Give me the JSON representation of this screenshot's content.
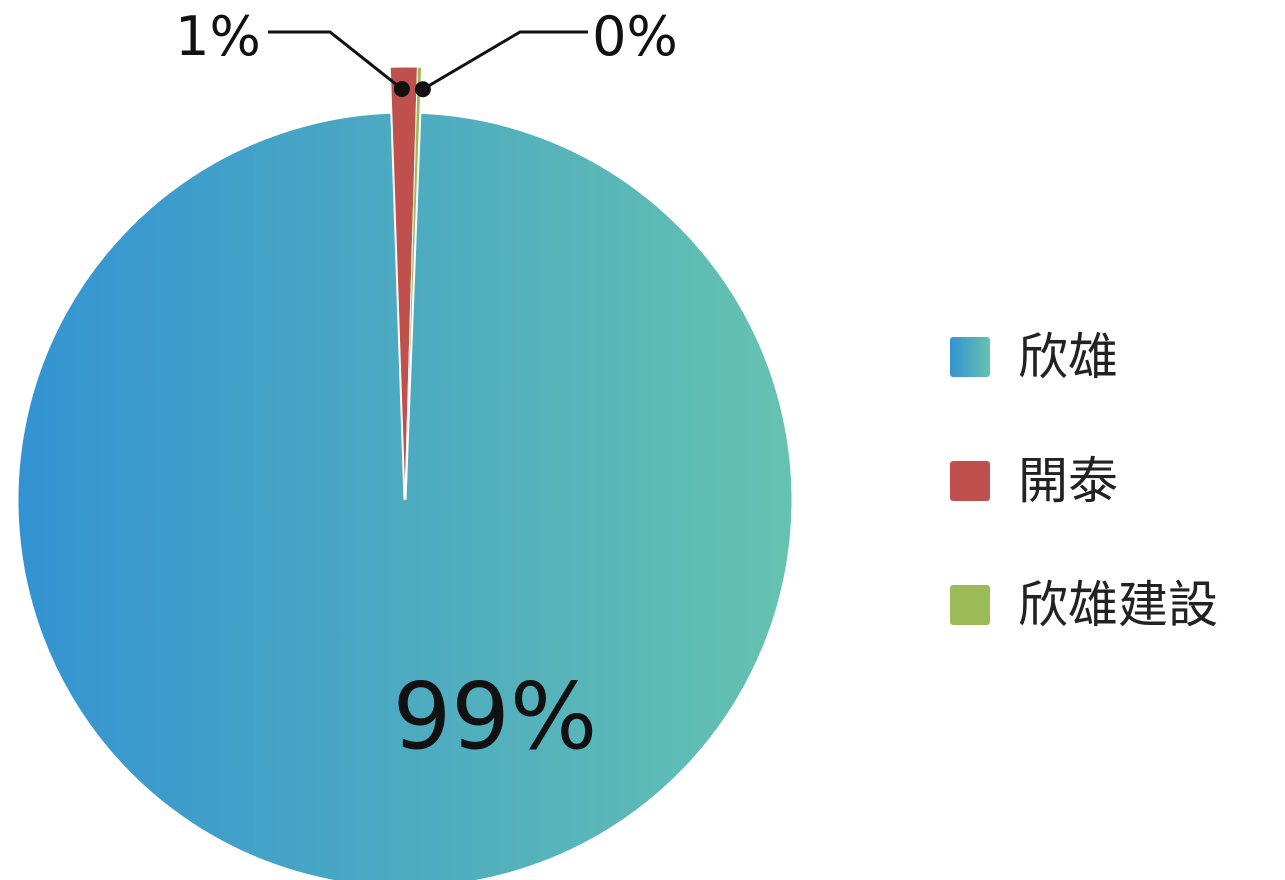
{
  "chart_data": {
    "type": "pie",
    "title": "",
    "series": [
      {
        "name": "",
        "categories": [
          "欣雄",
          "開泰",
          "欣雄建設"
        ],
        "values": [
          99,
          1,
          0
        ],
        "labels": [
          "99%",
          "1%",
          "0%"
        ],
        "colors": [
          "#3a98d1",
          "#c0504d",
          "#9bbb59"
        ]
      }
    ],
    "legend": {
      "position": "right",
      "items": [
        "欣雄",
        "開泰",
        "欣雄建設"
      ]
    },
    "gradient": {
      "from": "#3393d2",
      "to": "#66c2b0"
    }
  }
}
